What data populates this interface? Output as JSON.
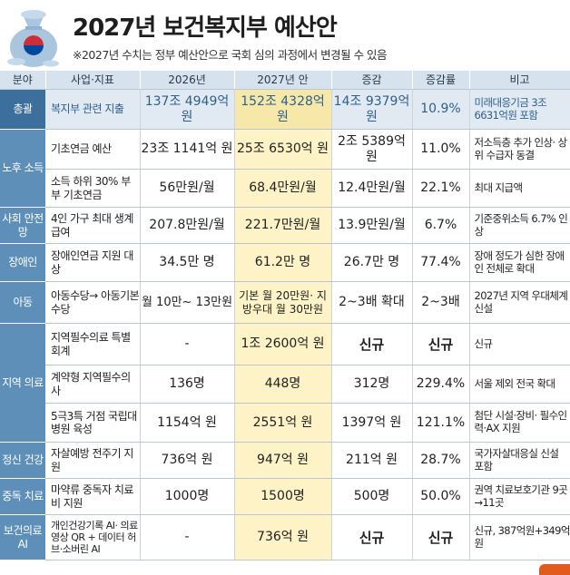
{
  "header": {
    "title": "2027년 보건복지부 예산안",
    "subtitle": "※2027년 수치는 정부 예산안으로 국회 심의 과정에서 변경될 수 있음"
  },
  "table": {
    "columns": [
      "분야",
      "사업·지표",
      "2026년",
      "2027년 안",
      "증감",
      "증감률",
      "비고"
    ],
    "rows": [
      {
        "cat": "총괄",
        "item": "복지부 관련 지출",
        "y26": "137조 4949억 원",
        "y27": "152조 4328억 원",
        "diff": "14조 9379억 원",
        "rate": "10.9%",
        "note": "미래대응기금 3조6631억원 포함"
      },
      {
        "cat": "노후 소득",
        "item": "기초연금 예산",
        "y26": "23조 1141억 원",
        "y27": "25조 6530억 원",
        "diff": "2조 5389억 원",
        "rate": "11.0%",
        "note": "저소득층 추가 인상· 상위 수급자 동결"
      },
      {
        "item": "소득 하위 30% 부부 기초연금",
        "y26": "56만원/월",
        "y27": "68.4만원/월",
        "diff": "12.4만원/월",
        "rate": "22.1%",
        "note": "최대 지급액"
      },
      {
        "cat": "사회 안전망",
        "item": "4인 가구 최대 생계급여",
        "y26": "207.8만원/월",
        "y27": "221.7만원/월",
        "diff": "13.9만원/월",
        "rate": "6.7%",
        "note": "기준중위소득 6.7% 인상"
      },
      {
        "cat": "장애인",
        "item": "장애인연금 지원 대상",
        "y26": "34.5만 명",
        "y27": "61.2만 명",
        "diff": "26.7만 명",
        "rate": "77.4%",
        "note": "장애 정도가 심한 장애인 전체로 확대"
      },
      {
        "cat": "아동",
        "item": "아동수당→ 아동기본수당",
        "y26": "월 10만~ 13만원",
        "y27": "기본 월 20만원· 지방우대 월 30만원",
        "diff": "2~3배 확대",
        "rate": "2~3배",
        "note": "2027년 지역 우대체계 신설"
      },
      {
        "cat": "지역 의료",
        "item": "지역필수의료 특별회계",
        "y26": "-",
        "y27": "1조 2600억 원",
        "diff": "신규",
        "rate": "신규",
        "note": "신규"
      },
      {
        "item": "계약형 지역필수의사",
        "y26": "136명",
        "y27": "448명",
        "diff": "312명",
        "rate": "229.4%",
        "note": "서울 제외 전국 확대"
      },
      {
        "item": "5극3특 거점 국립대병원 육성",
        "y26": "1154억 원",
        "y27": "2551억 원",
        "diff": "1397억 원",
        "rate": "121.1%",
        "note": "첨단 시설·장비· 필수인력·AX 지원"
      },
      {
        "cat": "정신 건강",
        "item": "자살예방 전주기 지원",
        "y26": "736억 원",
        "y27": "947억 원",
        "diff": "211억 원",
        "rate": "28.7%",
        "note": "국가자살대응실 신설 포함"
      },
      {
        "cat": "중독 치료",
        "item": "마약류 중독자 치료비 지원",
        "y26": "1000명",
        "y27": "1500명",
        "diff": "500명",
        "rate": "50.0%",
        "note": "권역 치료보호기관 9곳→11곳"
      },
      {
        "cat": "보건의료 AI",
        "item": "개인건강기록 AI· 의료영상 QR + 데이터 허브·소버린 AI",
        "y26": "-",
        "y27": "736억 원",
        "diff": "신규",
        "rate": "신규",
        "note": "신규, 387억원+349억원"
      }
    ]
  },
  "colors": {
    "category": "#5d8fb8",
    "header": "#d6e3ee",
    "highlight": "#fdf3c6",
    "accent": "#e25a1c"
  },
  "icons": {
    "logo": "money-bag-icon"
  }
}
